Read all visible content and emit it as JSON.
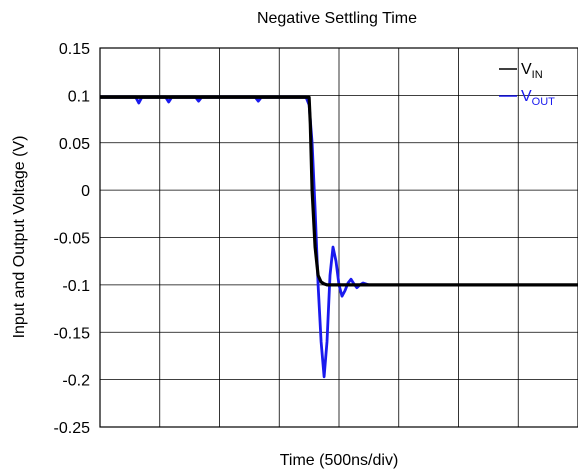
{
  "chart_data": {
    "type": "line",
    "title": "Negative Settling Time",
    "xlabel": "Time (500ns/div)",
    "ylabel": "Input and Output Voltage (V)",
    "ylim": [
      -0.25,
      0.15
    ],
    "yticks": [
      0.15,
      0.1,
      0.05,
      0,
      -0.05,
      -0.1,
      -0.15,
      -0.2,
      -0.25
    ],
    "ytick_labels": [
      "0.15",
      "0.1",
      "0.05",
      "0",
      "-0.05",
      "-0.1",
      "-0.15",
      "-0.2",
      "-0.25"
    ],
    "x_divisions": 8,
    "xlim": [
      0,
      8
    ],
    "grid": true,
    "legend_position": "top-right",
    "series": [
      {
        "name": "V_IN",
        "legend_main": "V",
        "legend_sub": "IN",
        "color": "#000000",
        "x": [
          0,
          1,
          2,
          3,
          3.5,
          3.52,
          3.55,
          3.6,
          3.65,
          3.7,
          3.75,
          3.8,
          4,
          5,
          6,
          7,
          8
        ],
        "y": [
          0.098,
          0.098,
          0.098,
          0.098,
          0.098,
          0.07,
          0.0,
          -0.06,
          -0.09,
          -0.097,
          -0.099,
          -0.1,
          -0.1,
          -0.1,
          -0.1,
          -0.1,
          -0.1
        ]
      },
      {
        "name": "V_OUT",
        "legend_main": "V",
        "legend_sub": "OUT",
        "color": "#1a1aee",
        "x": [
          0,
          0.6,
          0.65,
          0.7,
          1.0,
          1.1,
          1.15,
          1.2,
          1.6,
          1.65,
          1.7,
          2.6,
          2.65,
          2.7,
          3.0,
          3.45,
          3.5,
          3.55,
          3.6,
          3.65,
          3.7,
          3.75,
          3.8,
          3.85,
          3.9,
          3.95,
          4.0,
          4.05,
          4.1,
          4.15,
          4.2,
          4.25,
          4.3,
          4.35,
          4.4,
          4.5,
          5,
          6,
          7,
          8
        ],
        "y": [
          0.098,
          0.098,
          0.092,
          0.098,
          0.098,
          0.098,
          0.093,
          0.098,
          0.098,
          0.094,
          0.098,
          0.098,
          0.094,
          0.098,
          0.098,
          0.098,
          0.09,
          0.05,
          -0.02,
          -0.1,
          -0.16,
          -0.197,
          -0.16,
          -0.09,
          -0.06,
          -0.075,
          -0.1,
          -0.112,
          -0.106,
          -0.098,
          -0.094,
          -0.099,
          -0.103,
          -0.1,
          -0.098,
          -0.1,
          -0.1,
          -0.1,
          -0.1,
          -0.1
        ]
      }
    ]
  }
}
